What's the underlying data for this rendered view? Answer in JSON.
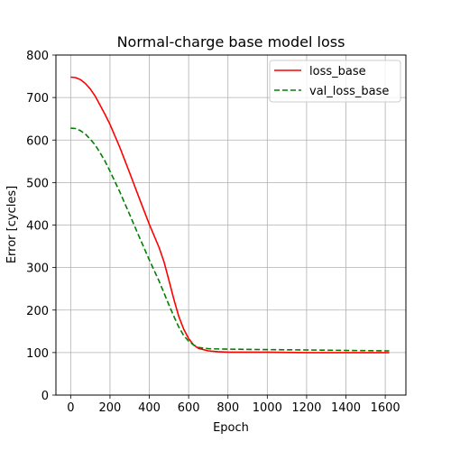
{
  "chart_data": {
    "type": "line",
    "title": "Normal-charge base model loss",
    "xlabel": "Epoch",
    "ylabel": "Error [cycles]",
    "xlim": [
      -75,
      1705
    ],
    "ylim": [
      0,
      800
    ],
    "xticks": [
      0,
      200,
      400,
      600,
      800,
      1000,
      1200,
      1400,
      1600
    ],
    "yticks": [
      0,
      100,
      200,
      300,
      400,
      500,
      600,
      700,
      800
    ],
    "grid": true,
    "legend_position": "top-right",
    "series": [
      {
        "name": "loss_base",
        "color": "#ff0000",
        "style": "solid",
        "x": [
          0,
          25,
          50,
          75,
          100,
          125,
          150,
          175,
          200,
          250,
          300,
          350,
          400,
          450,
          475,
          500,
          525,
          550,
          575,
          600,
          625,
          650,
          700,
          750,
          800,
          900,
          1000,
          1200,
          1400,
          1620
        ],
        "y": [
          748,
          747,
          742,
          733,
          720,
          703,
          682,
          660,
          637,
          583,
          523,
          462,
          402,
          347,
          313,
          270,
          225,
          185,
          155,
          133,
          118,
          110,
          104,
          102,
          101,
          101,
          101,
          100,
          100,
          100
        ]
      },
      {
        "name": "val_loss_base",
        "color": "#008000",
        "style": "dashed",
        "x": [
          0,
          25,
          50,
          75,
          100,
          125,
          150,
          175,
          200,
          250,
          300,
          350,
          400,
          450,
          500,
          525,
          550,
          575,
          600,
          625,
          650,
          700,
          800,
          1000,
          1200,
          1400,
          1620
        ],
        "y": [
          628,
          627,
          622,
          614,
          602,
          588,
          570,
          550,
          527,
          478,
          425,
          371,
          318,
          268,
          212,
          185,
          160,
          140,
          127,
          118,
          112,
          109,
          108,
          107,
          106,
          105,
          104
        ]
      }
    ]
  }
}
